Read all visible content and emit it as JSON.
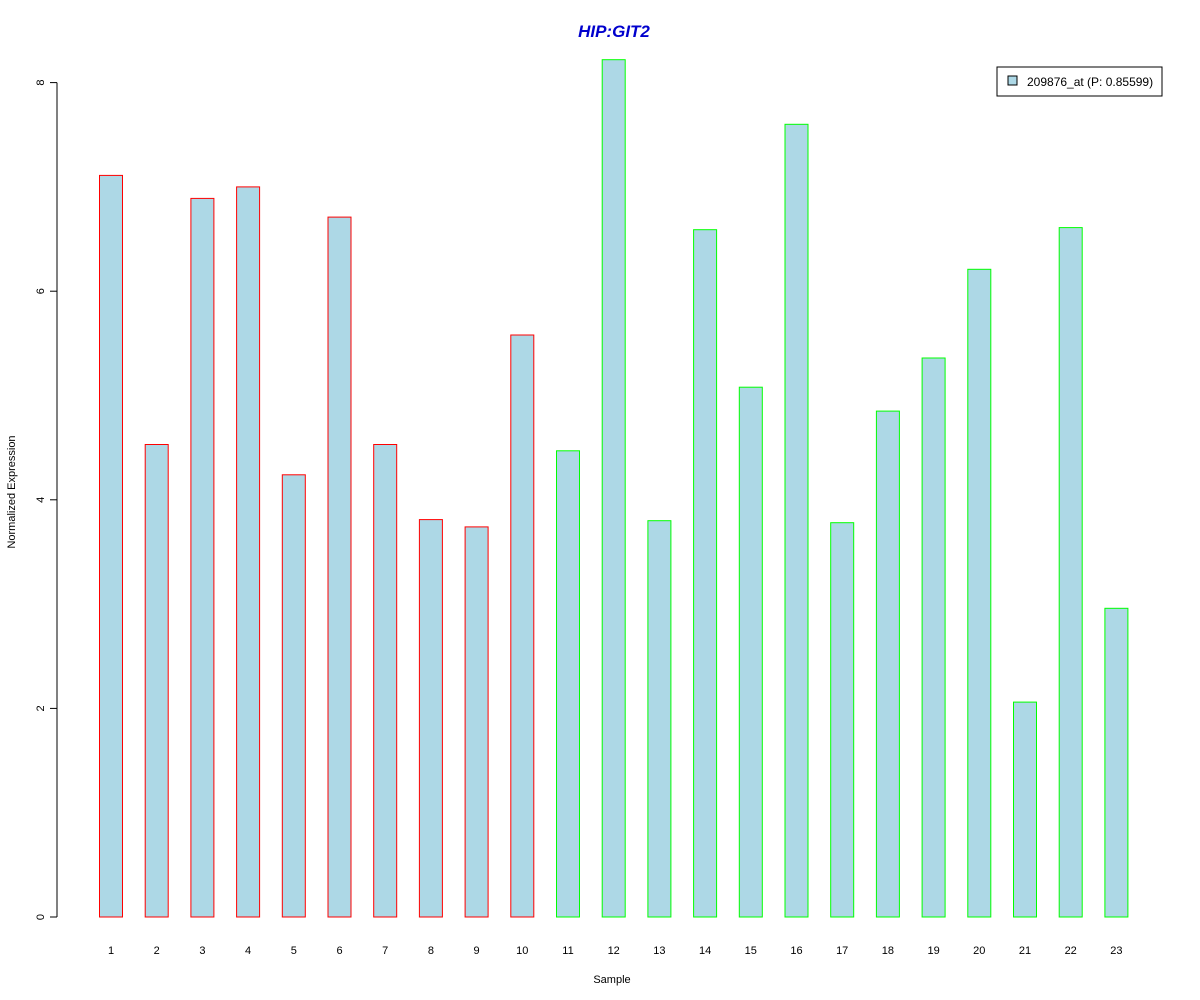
{
  "chart_data": {
    "type": "bar",
    "title": "HIP:GIT2",
    "xlabel": "Sample",
    "ylabel": "Normalized Expression",
    "categories": [
      "1",
      "2",
      "3",
      "4",
      "5",
      "6",
      "7",
      "8",
      "9",
      "10",
      "11",
      "12",
      "13",
      "14",
      "15",
      "16",
      "17",
      "18",
      "19",
      "20",
      "21",
      "22",
      "23"
    ],
    "values": [
      7.11,
      4.53,
      6.89,
      7.0,
      4.24,
      6.71,
      4.53,
      3.81,
      3.74,
      5.58,
      4.47,
      8.22,
      3.8,
      6.59,
      5.08,
      7.6,
      3.78,
      4.85,
      5.36,
      6.21,
      2.06,
      6.61,
      2.96
    ],
    "groups": [
      "red",
      "red",
      "red",
      "red",
      "red",
      "red",
      "red",
      "red",
      "red",
      "red",
      "green",
      "green",
      "green",
      "green",
      "green",
      "green",
      "green",
      "green",
      "green",
      "green",
      "green",
      "green",
      "green"
    ],
    "ylim": [
      0,
      8.22
    ],
    "yticks": [
      0,
      2,
      4,
      6,
      8
    ],
    "grid": false,
    "legend": {
      "position": "top-right",
      "entries": [
        {
          "label": "209876_at (P: 0.85599)",
          "color": "#add8e6"
        }
      ]
    },
    "colors": {
      "fill": "#add8e6",
      "border_red": "#ff0000",
      "border_green": "#00ff00",
      "title": "#0000cd"
    }
  }
}
